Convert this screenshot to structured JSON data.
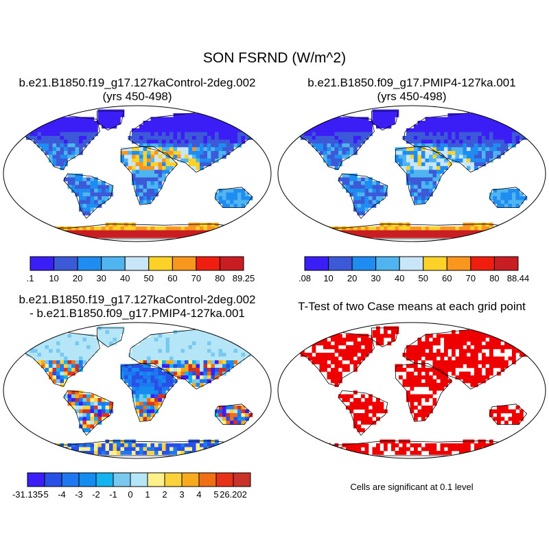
{
  "title": "SON FSRND (W/m^2)",
  "panels": {
    "p1": {
      "line1": "b.e21.B1850.f19_g17.127kaControl-2deg.002",
      "line2": "(yrs 450-498)"
    },
    "p2": {
      "line1": "b.e21.B1850.f09_g17.PMIP4-127ka.001",
      "line2": "(yrs 450-498)"
    },
    "p3": {
      "line1": "b.e21.B1850.f19_g17.127kaControl-2deg.002",
      "line2": "- b.e21.B1850.f09_g17.PMIP4-127ka.001"
    },
    "p4": {
      "line1": "T-Test of two Case means at each grid point",
      "line2": ""
    }
  },
  "significance_note": "Cells are significant at 0.1 level",
  "chart_data": [
    {
      "type": "heatmap",
      "projection": "robinson-world-map",
      "title": "b.e21.B1850.f19_g17.127kaControl-2deg.002 (yrs 450-498)",
      "colorbar": {
        "labels": [
          ".1",
          "10",
          "20",
          "30",
          "40",
          "50",
          "60",
          "70",
          "80",
          "89.25"
        ],
        "colors": [
          "#3a1ef5",
          "#3c5ad8",
          "#1e8cf0",
          "#50b4f0",
          "#c8e6f8",
          "#fcd228",
          "#f8961e",
          "#f01e0f",
          "#c81e23"
        ]
      }
    },
    {
      "type": "heatmap",
      "projection": "robinson-world-map",
      "title": "b.e21.B1850.f09_g17.PMIP4-127ka.001 (yrs 450-498)",
      "colorbar": {
        "labels": [
          ".08",
          "10",
          "20",
          "30",
          "40",
          "50",
          "60",
          "70",
          "80",
          "88.44"
        ],
        "colors": [
          "#3a1ef5",
          "#3c5ad8",
          "#1e8cf0",
          "#50b4f0",
          "#c8e6f8",
          "#fcd228",
          "#f8961e",
          "#f01e0f",
          "#c81e23"
        ]
      }
    },
    {
      "type": "heatmap",
      "projection": "robinson-world-map",
      "title": "b.e21.B1850.f19_g17.127kaControl-2deg.002 - b.e21.B1850.f09_g17.PMIP4-127ka.001",
      "colorbar": {
        "labels": [
          "-31.135",
          "-5",
          "-4",
          "-3",
          "-2",
          "-1",
          "0",
          "1",
          "2",
          "3",
          "4",
          "5",
          "26.202"
        ],
        "colors": [
          "#3a1ef5",
          "#2850e6",
          "#1e78f0",
          "#148cf0",
          "#14b4f0",
          "#78c8f0",
          "#b4e6f8",
          "#fff08c",
          "#fcd23c",
          "#f8aa1e",
          "#f06e14",
          "#e63219",
          "#c83228"
        ]
      }
    },
    {
      "type": "heatmap",
      "projection": "robinson-world-map",
      "title": "T-Test of two Case means at each grid point",
      "significance_color": "#ee0000"
    }
  ]
}
